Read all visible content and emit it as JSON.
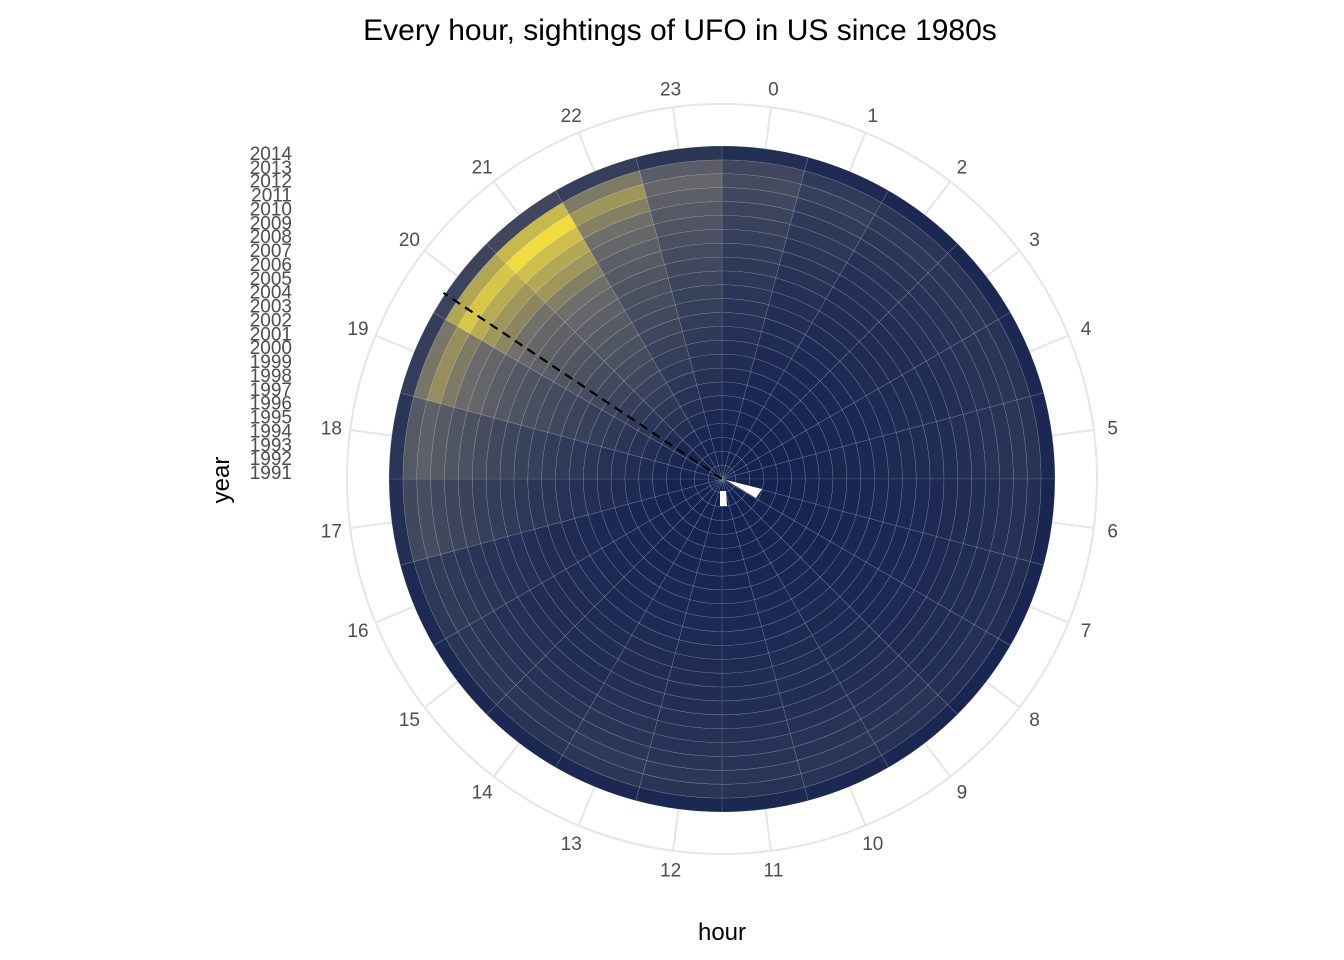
{
  "chart_data": {
    "type": "heatmap",
    "coordinate_system": "polar",
    "title": "Every hour, sightings of UFO in US since 1980s",
    "xlabel": "hour",
    "ylabel": "year",
    "hours": [
      0,
      1,
      2,
      3,
      4,
      5,
      6,
      7,
      8,
      9,
      10,
      11,
      12,
      13,
      14,
      15,
      16,
      17,
      18,
      19,
      20,
      21,
      22,
      23
    ],
    "years": [
      1991,
      1992,
      1993,
      1994,
      1995,
      1996,
      1997,
      1998,
      1999,
      2000,
      2001,
      2002,
      2003,
      2004,
      2005,
      2006,
      2007,
      2008,
      2009,
      2010,
      2011,
      2012,
      2013,
      2014
    ],
    "legend": "none",
    "grid": true,
    "colors": {
      "low": "#0b1b4d",
      "mid": "#6b6b6b",
      "high": "#ffe83a",
      "grid": "#e6e6e6",
      "dashed_line": "#000000"
    },
    "hour_intensity": {
      "0": 0.32,
      "1": 0.22,
      "2": 0.17,
      "3": 0.16,
      "4": 0.15,
      "5": 0.15,
      "6": 0.12,
      "7": 0.11,
      "8": 0.11,
      "9": 0.14,
      "10": 0.15,
      "11": 0.15,
      "12": 0.16,
      "13": 0.17,
      "14": 0.15,
      "15": 0.16,
      "16": 0.19,
      "17": 0.33,
      "18": 0.48,
      "19": 0.68,
      "20": 0.86,
      "21": 0.93,
      "22": 0.7,
      "23": 0.52
    },
    "year_profile": {
      "1991": 0.02,
      "1992": 0.03,
      "1993": 0.04,
      "1994": 0.06,
      "1995": 0.1,
      "1996": 0.14,
      "1997": 0.18,
      "1998": 0.22,
      "1999": 0.26,
      "2000": 0.3,
      "2001": 0.34,
      "2002": 0.38,
      "2003": 0.42,
      "2004": 0.46,
      "2005": 0.5,
      "2006": 0.55,
      "2007": 0.6,
      "2008": 0.66,
      "2009": 0.74,
      "2010": 0.8,
      "2011": 0.88,
      "2012": 0.98,
      "2013": 0.86,
      "2014": 0.3
    },
    "peak_hour_line": 20.25
  }
}
